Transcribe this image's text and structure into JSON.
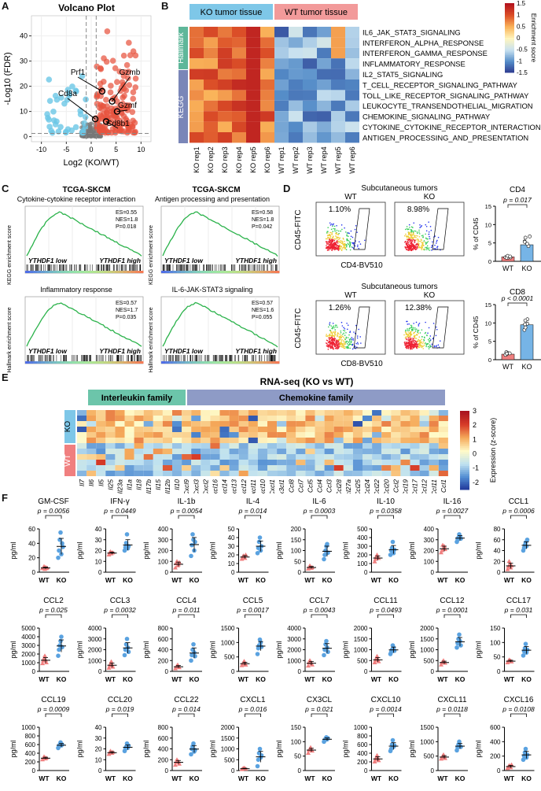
{
  "panel_letters": {
    "a": "A",
    "b": "B",
    "c": "C",
    "d": "D",
    "e": "E",
    "f": "F"
  },
  "colors": {
    "wt_red": "#f07f7f",
    "ko_blue": "#5aa2e0",
    "hallmark_green": "#5fb79a",
    "kegg_purple": "#7a86b8",
    "ko_header": "#7ec7e8",
    "wt_header": "#f29a9a",
    "interleukin": "#6cc5aa",
    "chemokine": "#8e9bc6"
  },
  "volcano": {
    "title": "Volcano Plot",
    "ylabel": "-Log10 (FDR)",
    "xlabel": "Log2 (KO/WT)",
    "xticks": [
      "-10",
      "-5",
      "0",
      "5",
      "10"
    ],
    "yticks": [
      "0",
      "10",
      "20",
      "30",
      "40"
    ],
    "genes": [
      "Prf1",
      "Gzmb",
      "Cd8a",
      "Gzmf",
      "Cd8b1"
    ]
  },
  "heatmapB": {
    "header_ko": "KO tumor tissue",
    "header_wt": "WT tumor tissue",
    "group_hallmark": "Hallmark",
    "group_kegg": "KEGG",
    "rows": [
      "IL6_JAK_STAT3_SIGNALING",
      "INTERFERON_ALPHA_RESPONSE",
      "INTERFERON_GAMMA_RESPONSE",
      "INFLAMMATORY_RESPONSE",
      "IL2_STAT5_SIGNALING",
      "T_CELL_RECEPTOR_SIGNALING_PATHWAY",
      "TOLL_LIKE_RECEPTOR_SIGNALING_PATHWAY",
      "LEUKOCYTE_TRANSENDOTHELIAL_MIGRATION",
      "CHEMOKINE_SIGNALING_PATHWAY",
      "CYTOKINE_CYTOKINE_RECEPTOR_INTERACTION",
      "ANTIGEN_PROCESSING_AND_PRESENTATION"
    ],
    "cols": [
      "KO rep1",
      "KO rep2",
      "KO rep3",
      "KO rep4",
      "KO rep5",
      "KO rep6",
      "WT rep1",
      "WT rep2",
      "WT rep3",
      "WT rep4",
      "WT rep5",
      "WT rep6"
    ],
    "legend_title": "Enrichment socre",
    "legend_ticks": [
      "1.5",
      "1",
      "0.5",
      "0",
      "-0.5",
      "-1",
      "-1.5"
    ]
  },
  "gsea": {
    "group1": "TCGA-SKCM",
    "ylabel_kegg": "KEGG enrichment score",
    "ylabel_hallmark": "Hallmark enrichment score",
    "low": "YTHDF1 low",
    "high": "YTHDF1 high",
    "plots": [
      {
        "title": "Cytokine-cytokine receptor interaction",
        "es": "ES=0.55",
        "nes": "NES=1.8",
        "p": "P=0.018"
      },
      {
        "title": "Antigen processing and presentation",
        "es": "ES=0.58",
        "nes": "NES=1.8",
        "p": "P=0.042"
      },
      {
        "title": "Inflammatory response",
        "es": "ES=0.57",
        "nes": "NES=1.7",
        "p": "P=0.035"
      },
      {
        "title": "IL-6-JAK-STAT3 signaling",
        "es": "ES=0.57",
        "nes": "NES=1.6",
        "p": "P=0.055"
      }
    ]
  },
  "flow": {
    "title": "Subcutaneous tumors",
    "rows": [
      {
        "wt_pct": "1.10%",
        "ko_pct": "8.98%",
        "xlabel": "CD4-BV510",
        "ylabel": "CD45-FITC",
        "bar_title": "CD4",
        "p": "p = 0.017",
        "ylab": "% of CD45",
        "yticks": [
          "0",
          "5",
          "10",
          "15"
        ]
      },
      {
        "wt_pct": "1.26%",
        "ko_pct": "12.38%",
        "xlabel": "CD8-BV510",
        "ylabel": "CD45-FITC",
        "bar_title": "CD8",
        "p": "p < 0.0001",
        "ylab": "% of CD45",
        "yticks": [
          "0",
          "5",
          "10",
          "15"
        ]
      }
    ],
    "wt": "WT",
    "ko": "KO"
  },
  "heatmapE": {
    "title": "RNA-seq (KO vs WT)",
    "family1": "Interleukin family",
    "family2": "Chemokine family",
    "ko": "KO",
    "wt": "WT",
    "legend_title": "Expression (z-score)",
    "legend_ticks": [
      "3",
      "2",
      "1",
      "0",
      "-1",
      "-2"
    ],
    "genes": [
      "Il7",
      "Il6",
      "Il5",
      "Il25",
      "Il23a",
      "Il1a",
      "Il18",
      "Il17b",
      "Il15",
      "Il12b",
      "Il10",
      "Cxcl9",
      "Cxcl3",
      "Cxcl2",
      "Cxcl16",
      "Cxcl14",
      "Cxcl13",
      "Cxcl12",
      "Cxcl11",
      "Cxcl10",
      "Cxcl1",
      "Cx3cl1",
      "Ccl8",
      "Ccl7",
      "Ccl5",
      "Ccl4",
      "Ccl3",
      "Ccl28",
      "Ccl27a",
      "Ccl25",
      "Ccl24",
      "Ccl22",
      "Ccl20",
      "Ccl2",
      "Ccl19",
      "Ccl17",
      "Ccl12",
      "Ccl11",
      "Ccl1"
    ]
  },
  "cytokines": {
    "ylabel": "pg/ml",
    "wt": "WT",
    "ko": "KO",
    "items": [
      {
        "name": "GM-CSF",
        "p": "p = 0.0056",
        "yticks": [
          "0",
          "20",
          "40",
          "60"
        ],
        "ymax": 60,
        "wt": [
          5,
          6,
          8,
          4,
          7,
          5,
          6
        ],
        "ko": [
          20,
          30,
          45,
          55,
          25,
          40,
          35
        ]
      },
      {
        "name": "IFN-γ",
        "p": "p = 0.0449",
        "yticks": [
          "0",
          "10",
          "20",
          "30",
          "40"
        ],
        "ymax": 40,
        "wt": [
          16,
          18,
          19,
          17,
          18,
          18
        ],
        "ko": [
          20,
          23,
          27,
          35,
          22,
          24
        ]
      },
      {
        "name": "IL-1b",
        "p": "p = 0.0054",
        "yticks": [
          "0",
          "100",
          "200",
          "300",
          "400"
        ],
        "ymax": 400,
        "wt": [
          40,
          80,
          100,
          60,
          70,
          90
        ],
        "ko": [
          150,
          250,
          350,
          300,
          200,
          280
        ]
      },
      {
        "name": "IL-4",
        "p": "p = 0.014",
        "yticks": [
          "0",
          "10",
          "20",
          "30",
          "40",
          "50"
        ],
        "ymax": 50,
        "wt": [
          15,
          17,
          19,
          18,
          16,
          20
        ],
        "ko": [
          22,
          28,
          35,
          40,
          25,
          30
        ]
      },
      {
        "name": "IL-6",
        "p": "p = 0.0003",
        "yticks": [
          "0",
          "50",
          "100",
          "150",
          "200"
        ],
        "ymax": 200,
        "wt": [
          15,
          20,
          30,
          25,
          18,
          22
        ],
        "ko": [
          60,
          80,
          100,
          120,
          130,
          90
        ]
      },
      {
        "name": "IL-10",
        "p": "p = 0.0358",
        "yticks": [
          "0",
          "100",
          "200",
          "300",
          "400",
          "500"
        ],
        "ymax": 500,
        "wt": [
          120,
          150,
          180,
          200,
          170,
          160
        ],
        "ko": [
          200,
          250,
          280,
          350,
          220,
          260
        ]
      },
      {
        "name": "IL-16",
        "p": "p = 0.0027",
        "yticks": [
          "0",
          "100",
          "200",
          "300",
          "400"
        ],
        "ymax": 400,
        "wt": [
          180,
          200,
          250,
          220,
          240,
          210
        ],
        "ko": [
          280,
          300,
          320,
          350,
          330,
          310
        ]
      },
      {
        "name": "CCL1",
        "p": "p = 0.0006",
        "yticks": [
          "0",
          "20",
          "40",
          "60",
          "80"
        ],
        "ymax": 80,
        "wt": [
          5,
          10,
          20,
          15,
          8,
          12
        ],
        "ko": [
          40,
          45,
          50,
          55,
          48,
          60
        ]
      },
      {
        "name": "CCL2",
        "p": "p = 0.025",
        "yticks": [
          "0",
          "1000",
          "2000",
          "3000",
          "4000",
          "5000"
        ],
        "ymax": 5000,
        "wt": [
          900,
          1200,
          1500,
          1800,
          1300,
          1000
        ],
        "ko": [
          1800,
          2500,
          3000,
          3500,
          4000,
          2800
        ]
      },
      {
        "name": "CCL3",
        "p": "p = 0.0032",
        "yticks": [
          "0",
          "1000",
          "2000",
          "3000",
          "4000"
        ],
        "ymax": 4000,
        "wt": [
          300,
          500,
          700,
          900,
          600,
          400
        ],
        "ko": [
          1500,
          2000,
          2500,
          3000,
          2200,
          1800
        ]
      },
      {
        "name": "CCL4",
        "p": "p = 0.011",
        "yticks": [
          "0",
          "200",
          "400",
          "600",
          "800"
        ],
        "ymax": 800,
        "wt": [
          50,
          80,
          100,
          120,
          90,
          70
        ],
        "ko": [
          200,
          300,
          400,
          500,
          350,
          280
        ]
      },
      {
        "name": "CCL5",
        "p": "p = 0.0017",
        "yticks": [
          "0",
          "500",
          "1000",
          "1500"
        ],
        "ymax": 1500,
        "wt": [
          200,
          250,
          300,
          350,
          280,
          220
        ],
        "ko": [
          600,
          800,
          900,
          1100,
          1000,
          850
        ]
      },
      {
        "name": "CCL7",
        "p": "p = 0.0043",
        "yticks": [
          "0",
          "1000",
          "2000",
          "3000",
          "4000"
        ],
        "ymax": 4000,
        "wt": [
          500,
          800,
          1000,
          900,
          700,
          600
        ],
        "ko": [
          1500,
          2000,
          2500,
          2800,
          2200,
          1800
        ]
      },
      {
        "name": "CCL11",
        "p": "p = 0.0493",
        "yticks": [
          "0",
          "500",
          "1000",
          "1500",
          "2000"
        ],
        "ymax": 2000,
        "wt": [
          400,
          500,
          600,
          700,
          550,
          450
        ],
        "ko": [
          800,
          900,
          1000,
          1200,
          1100,
          950
        ]
      },
      {
        "name": "CCL12",
        "p": "p = 0.0001",
        "yticks": [
          "0",
          "500",
          "1000",
          "1500",
          "2000"
        ],
        "ymax": 2000,
        "wt": [
          300,
          400,
          450,
          500,
          420,
          380
        ],
        "ko": [
          1100,
          1300,
          1500,
          1700,
          1400,
          1200
        ]
      },
      {
        "name": "CCL17",
        "p": "p = 0.031",
        "yticks": [
          "0",
          "50",
          "100",
          "150"
        ],
        "ymax": 150,
        "wt": [
          30,
          35,
          40,
          38,
          36,
          33
        ],
        "ko": [
          55,
          70,
          80,
          95,
          65,
          75
        ]
      },
      {
        "name": "CCL19",
        "p": "p = 0.0009",
        "yticks": [
          "0",
          "200",
          "400",
          "600",
          "800",
          "1000"
        ],
        "ymax": 1000,
        "wt": [
          250,
          280,
          320,
          300,
          270,
          290
        ],
        "ko": [
          520,
          560,
          600,
          650,
          580,
          600
        ]
      },
      {
        "name": "CCL20",
        "p": "p = 0.019",
        "yticks": [
          "0",
          "10",
          "20",
          "30",
          "40"
        ],
        "ymax": 40,
        "wt": [
          15,
          16,
          18,
          17,
          16,
          17
        ],
        "ko": [
          18,
          20,
          22,
          25,
          21,
          23
        ]
      },
      {
        "name": "CCL22",
        "p": "p = 0.014",
        "yticks": [
          "0",
          "200",
          "400",
          "600",
          "800"
        ],
        "ymax": 800,
        "wt": [
          100,
          150,
          200,
          180,
          160,
          120
        ],
        "ko": [
          300,
          400,
          450,
          500,
          350,
          380
        ]
      },
      {
        "name": "CXCL1",
        "p": "p = 0.016",
        "yticks": [
          "0",
          "500",
          "1000",
          "1500",
          "2000"
        ],
        "ymax": 2000,
        "wt": [
          50,
          80,
          100,
          120,
          90,
          70
        ],
        "ko": [
          200,
          500,
          800,
          1000,
          600,
          700
        ]
      },
      {
        "name": "CX3CL",
        "p": "p = 0.021",
        "yticks": [
          "0",
          "50",
          "100",
          "150"
        ],
        "ymax": 150,
        "wt": [
          60,
          70,
          75,
          80,
          72,
          68
        ],
        "ko": [
          100,
          105,
          110,
          115,
          108,
          112
        ]
      },
      {
        "name": "CXCL10",
        "p": "p = 0.0014",
        "yticks": [
          "0",
          "200",
          "400",
          "600",
          "800",
          "1000"
        ],
        "ymax": 1000,
        "wt": [
          200,
          250,
          300,
          350,
          280,
          230
        ],
        "ko": [
          450,
          500,
          600,
          700,
          550,
          580
        ]
      },
      {
        "name": "CXCL11",
        "p": "p = 0.0118",
        "yticks": [
          "0",
          "500",
          "1000",
          "1500"
        ],
        "ymax": 1500,
        "wt": [
          400,
          450,
          500,
          550,
          480,
          420
        ],
        "ko": [
          700,
          800,
          900,
          1000,
          850,
          820
        ]
      },
      {
        "name": "CXCL16",
        "p": "p = 0.0108",
        "yticks": [
          "0",
          "200",
          "400",
          "600"
        ],
        "ymax": 600,
        "wt": [
          30,
          50,
          70,
          60,
          40,
          80
        ],
        "ko": [
          150,
          200,
          250,
          300,
          180,
          220
        ]
      }
    ]
  }
}
